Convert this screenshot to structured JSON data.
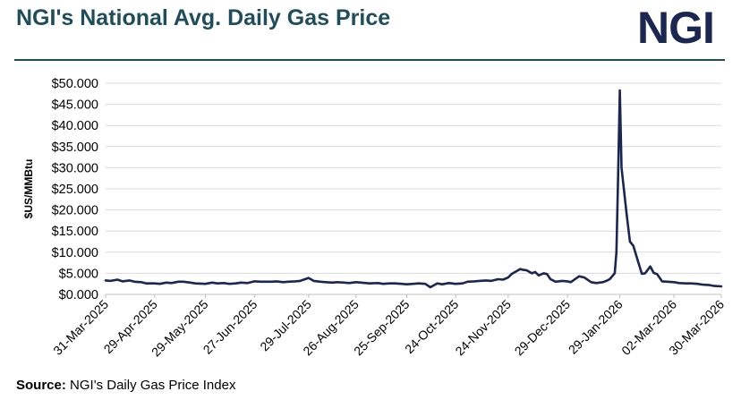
{
  "header": {
    "title": "NGI's National Avg. Daily Gas Price",
    "logo": "NGI"
  },
  "footer": {
    "source_label": "Source:",
    "source_text": "NGI's Daily Gas Price Index"
  },
  "colors": {
    "line": "#1b2651",
    "title": "#1f4e5a",
    "grid": "#d9d9d9"
  },
  "chart_data": {
    "type": "line",
    "title": "NGI's National Avg. Daily Gas Price",
    "xlabel": "",
    "ylabel": "$US/MMBtu",
    "ylim": [
      0,
      50
    ],
    "yticks": [
      "$0.000",
      "$5.000",
      "$10.000",
      "$15.000",
      "$20.000",
      "$25.000",
      "$30.000",
      "$35.000",
      "$40.000",
      "$45.000",
      "$50.000"
    ],
    "xticks": [
      "31-Mar-2025",
      "29-Apr-2025",
      "29-May-2025",
      "27-Jun-2025",
      "29-Jul-2025",
      "26-Aug-2025",
      "25-Sep-2025",
      "24-Oct-2025",
      "24-Nov-2025",
      "29-Dec-2025",
      "29-Jan-2026",
      "02-Mar-2026",
      "30-Mar-2026"
    ],
    "grid": true,
    "series": [
      {
        "name": "",
        "x": [
          "2025-03-31",
          "2025-04-03",
          "2025-04-07",
          "2025-04-10",
          "2025-04-14",
          "2025-04-17",
          "2025-04-21",
          "2025-04-24",
          "2025-04-29",
          "2025-05-02",
          "2025-05-06",
          "2025-05-09",
          "2025-05-13",
          "2025-05-16",
          "2025-05-20",
          "2025-05-23",
          "2025-05-29",
          "2025-06-02",
          "2025-06-05",
          "2025-06-09",
          "2025-06-12",
          "2025-06-16",
          "2025-06-19",
          "2025-06-23",
          "2025-06-27",
          "2025-07-01",
          "2025-07-07",
          "2025-07-10",
          "2025-07-14",
          "2025-07-17",
          "2025-07-21",
          "2025-07-24",
          "2025-07-29",
          "2025-08-01",
          "2025-08-05",
          "2025-08-08",
          "2025-08-12",
          "2025-08-15",
          "2025-08-19",
          "2025-08-22",
          "2025-08-26",
          "2025-08-29",
          "2025-09-03",
          "2025-09-08",
          "2025-09-11",
          "2025-09-15",
          "2025-09-18",
          "2025-09-22",
          "2025-09-25",
          "2025-09-29",
          "2025-10-02",
          "2025-10-06",
          "2025-10-09",
          "2025-10-13",
          "2025-10-16",
          "2025-10-20",
          "2025-10-24",
          "2025-10-28",
          "2025-10-31",
          "2025-11-04",
          "2025-11-07",
          "2025-11-11",
          "2025-11-14",
          "2025-11-18",
          "2025-11-21",
          "2025-11-24",
          "2025-11-26",
          "2025-12-01",
          "2025-12-03",
          "2025-12-05",
          "2025-12-08",
          "2025-12-10",
          "2025-12-12",
          "2025-12-15",
          "2025-12-17",
          "2025-12-19",
          "2025-12-22",
          "2025-12-26",
          "2025-12-29",
          "2025-12-31",
          "2026-01-05",
          "2026-01-08",
          "2026-01-12",
          "2026-01-15",
          "2026-01-19",
          "2026-01-21",
          "2026-01-23",
          "2026-01-26",
          "2026-01-27",
          "2026-01-28",
          "2026-01-29",
          "2026-01-30",
          "2026-02-02",
          "2026-02-04",
          "2026-02-06",
          "2026-02-09",
          "2026-02-11",
          "2026-02-13",
          "2026-02-16",
          "2026-02-18",
          "2026-02-20",
          "2026-02-23",
          "2026-02-26",
          "2026-03-02",
          "2026-03-05",
          "2026-03-09",
          "2026-03-12",
          "2026-03-16",
          "2026-03-19",
          "2026-03-23",
          "2026-03-26",
          "2026-03-30"
        ],
        "y": [
          3.3,
          3.2,
          3.5,
          3.1,
          3.3,
          3.0,
          2.9,
          2.6,
          2.6,
          2.5,
          2.8,
          2.7,
          3.0,
          3.0,
          2.8,
          2.6,
          2.5,
          2.8,
          2.6,
          2.7,
          2.5,
          2.6,
          2.8,
          2.7,
          3.1,
          3.0,
          3.0,
          3.1,
          2.9,
          3.0,
          3.1,
          3.2,
          3.9,
          3.2,
          3.0,
          2.9,
          2.8,
          2.9,
          2.8,
          2.7,
          2.9,
          2.8,
          2.6,
          2.7,
          2.5,
          2.6,
          2.6,
          2.5,
          2.4,
          2.5,
          2.6,
          2.5,
          1.7,
          2.6,
          2.4,
          2.7,
          2.5,
          2.6,
          3.0,
          3.1,
          3.2,
          3.3,
          3.2,
          3.6,
          3.5,
          4.0,
          4.8,
          6.0,
          5.8,
          5.7,
          5.0,
          5.3,
          4.5,
          5.0,
          4.8,
          3.6,
          3.0,
          3.2,
          3.1,
          2.9,
          4.3,
          4.0,
          2.9,
          2.7,
          2.9,
          3.2,
          3.6,
          5.0,
          10.0,
          28.0,
          48.3,
          30.0,
          19.0,
          12.5,
          11.5,
          7.5,
          4.9,
          5.0,
          6.6,
          5.1,
          4.8,
          3.1,
          3.0,
          2.9,
          2.7,
          2.6,
          2.6,
          2.5,
          2.3,
          2.2,
          2.0,
          1.9
        ]
      }
    ]
  }
}
